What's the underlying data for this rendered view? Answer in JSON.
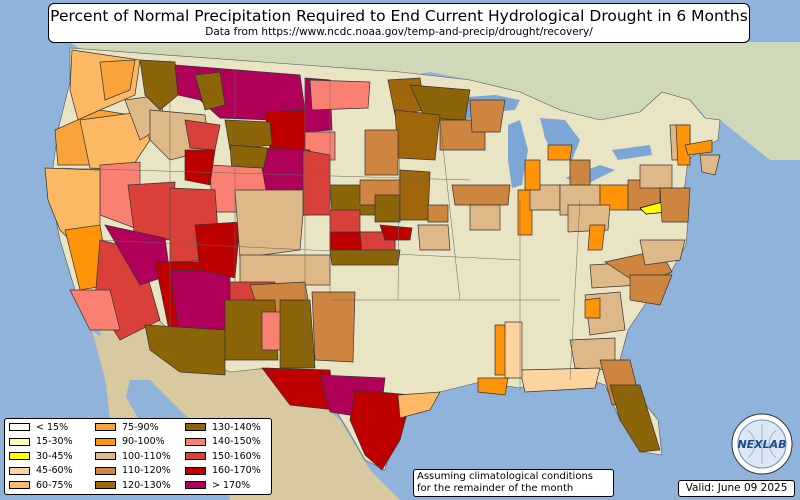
{
  "title": "Percent of Normal Precipitation Required to End Current Hydrological Drought in 6 Months",
  "subtitle": "Data from https://www.ncdc.noaa.gov/temp-and-precip/drought/recovery/",
  "note": [
    "Assuming climatological conditions",
    "for the remainder of the month"
  ],
  "valid": "Valid: June 09 2025",
  "logo": {
    "text": "NEXLAB",
    "icon": "nexlab-globe-logo"
  },
  "legend": [
    {
      "label": "< 15%",
      "color": "#ffffff"
    },
    {
      "label": "15-30%",
      "color": "#ffffb2"
    },
    {
      "label": "30-45%",
      "color": "#ffff00"
    },
    {
      "label": "45-60%",
      "color": "#fdd49e"
    },
    {
      "label": "60-75%",
      "color": "#fdb863"
    },
    {
      "label": "75-90%",
      "color": "#f9a33b"
    },
    {
      "label": "90-100%",
      "color": "#ff9408"
    },
    {
      "label": "100-110%",
      "color": "#deb887"
    },
    {
      "label": "110-120%",
      "color": "#cd853f"
    },
    {
      "label": "120-130%",
      "color": "#a0660b"
    },
    {
      "label": "130-140%",
      "color": "#8b6508"
    },
    {
      "label": "140-150%",
      "color": "#fa8072"
    },
    {
      "label": "150-160%",
      "color": "#d9403a"
    },
    {
      "label": "160-170%",
      "color": "#bf0000"
    },
    {
      "label": "> 170%",
      "color": "#b0005a"
    }
  ],
  "colors": {
    "ocean": "#8fb3da",
    "land": "#e9e4c4",
    "mexico": "#d9c9a0",
    "canada": "#cfd8b8",
    "lakes": "#7ba6d6"
  }
}
